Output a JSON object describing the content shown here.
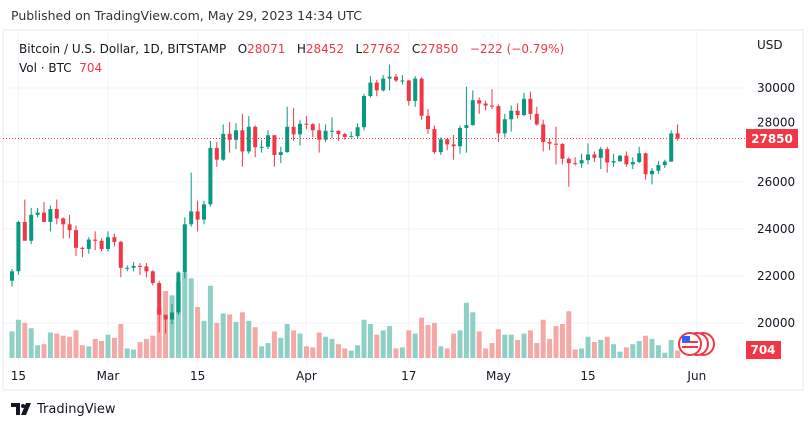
{
  "published": "Published on TradingView.com, May 29, 2023 14:34 UTC",
  "legend": {
    "symbol": "Bitcoin / U.S. Dollar, 1D, BITSTAMP",
    "o_label": "O",
    "o": "28071",
    "h_label": "H",
    "h": "28452",
    "l_label": "L",
    "l": "27762",
    "c_label": "C",
    "c": "27850",
    "change": "−222 (−0.79%)",
    "vol_label": "Vol · BTC",
    "vol": "704"
  },
  "logo_text": "TradingView",
  "colors": {
    "up": "#089981",
    "down": "#f23645",
    "vol_up": "#8fd0c6",
    "vol_down": "#f5a9a6",
    "grid": "#f0f3fa"
  },
  "chart_data": {
    "type": "candlestick",
    "title": "Bitcoin / U.S. Dollar, 1D, BITSTAMP",
    "currency_label": "USD",
    "start_date": "2023-02-14",
    "ylim": [
      19650,
      31300
    ],
    "y_ticks": [
      "20000",
      "22000",
      "24000",
      "26000",
      "28000",
      "30000"
    ],
    "x_ticks": [
      {
        "label": "15",
        "day": 1
      },
      {
        "label": "Mar",
        "day": 15
      },
      {
        "label": "15",
        "day": 29
      },
      {
        "label": "Apr",
        "day": 46
      },
      {
        "label": "17",
        "day": 62
      },
      {
        "label": "May",
        "day": 76
      },
      {
        "label": "15",
        "day": 90
      },
      {
        "label": "Jun",
        "day": 107
      }
    ],
    "last_price": "27850",
    "last_volume": "704",
    "ohlc": [
      [
        21800,
        22300,
        21550,
        22200
      ],
      [
        22200,
        24350,
        22050,
        24300
      ],
      [
        24300,
        25250,
        23500,
        23500
      ],
      [
        23500,
        24900,
        23350,
        24600
      ],
      [
        24600,
        24900,
        24500,
        24700
      ],
      [
        24700,
        25150,
        24300,
        24300
      ],
      [
        24300,
        25000,
        23900,
        24850
      ],
      [
        24850,
        25250,
        24200,
        24450
      ],
      [
        24450,
        24500,
        23600,
        24200
      ],
      [
        24200,
        24600,
        23600,
        23950
      ],
      [
        23950,
        24150,
        22850,
        23200
      ],
      [
        23200,
        23250,
        22800,
        23150
      ],
      [
        23150,
        23650,
        22950,
        23550
      ],
      [
        23550,
        23900,
        23100,
        23500
      ],
      [
        23500,
        23600,
        23050,
        23150
      ],
      [
        23150,
        23900,
        23050,
        23650
      ],
      [
        23650,
        23800,
        23250,
        23450
      ],
      [
        23450,
        23500,
        21950,
        22350
      ],
      [
        22350,
        22450,
        22200,
        22350
      ],
      [
        22350,
        22600,
        22200,
        22430
      ],
      [
        22430,
        22550,
        22050,
        22410
      ],
      [
        22410,
        22550,
        21950,
        22200
      ],
      [
        22200,
        22250,
        21600,
        21700
      ],
      [
        21700,
        21800,
        19600,
        20350
      ],
      [
        20350,
        20350,
        19550,
        20150
      ],
      [
        20150,
        20800,
        19950,
        20450
      ],
      [
        20450,
        22200,
        20350,
        22150
      ],
      [
        22150,
        24500,
        21900,
        24200
      ],
      [
        24200,
        26400,
        24100,
        24750
      ],
      [
        24750,
        25200,
        23900,
        24400
      ],
      [
        24400,
        25200,
        24200,
        25050
      ],
      [
        25050,
        27750,
        24950,
        27450
      ],
      [
        27450,
        27700,
        26650,
        26950
      ],
      [
        26950,
        28450,
        26900,
        28050
      ],
      [
        28050,
        28550,
        27250,
        27800
      ],
      [
        27800,
        28500,
        27400,
        28200
      ],
      [
        28200,
        28900,
        26650,
        27300
      ],
      [
        27300,
        28800,
        27200,
        28350
      ],
      [
        28350,
        28400,
        27050,
        27480
      ],
      [
        27480,
        27800,
        27250,
        27500
      ],
      [
        27500,
        28200,
        27400,
        27990
      ],
      [
        27990,
        28000,
        26650,
        27150
      ],
      [
        27150,
        27500,
        26800,
        27270
      ],
      [
        27270,
        29200,
        27250,
        28350
      ],
      [
        28350,
        29150,
        27750,
        28030
      ],
      [
        28030,
        28650,
        27550,
        28480
      ],
      [
        28480,
        28800,
        28250,
        28460
      ],
      [
        28460,
        28500,
        27900,
        28200
      ],
      [
        28200,
        28500,
        27250,
        27800
      ],
      [
        27800,
        28450,
        27700,
        28180
      ],
      [
        28180,
        28750,
        27850,
        28180
      ],
      [
        28180,
        28200,
        27750,
        28040
      ],
      [
        28040,
        28100,
        27800,
        27920
      ],
      [
        27920,
        28150,
        27900,
        27950
      ],
      [
        27950,
        28500,
        27850,
        28330
      ],
      [
        28330,
        29750,
        28200,
        29660
      ],
      [
        29660,
        30500,
        29600,
        30230
      ],
      [
        30230,
        30350,
        29650,
        29900
      ],
      [
        29900,
        30550,
        29850,
        30400
      ],
      [
        30400,
        31000,
        29900,
        30480
      ],
      [
        30480,
        30600,
        30250,
        30320
      ],
      [
        30320,
        30550,
        30150,
        30320
      ],
      [
        30320,
        30350,
        29250,
        29450
      ],
      [
        29450,
        30500,
        29200,
        30400
      ],
      [
        30400,
        30450,
        28650,
        28820
      ],
      [
        28820,
        29100,
        28050,
        28250
      ],
      [
        28250,
        28400,
        27200,
        27270
      ],
      [
        27270,
        27900,
        27150,
        27820
      ],
      [
        27820,
        27850,
        27350,
        27600
      ],
      [
        27600,
        28000,
        26950,
        27520
      ],
      [
        27520,
        28400,
        27200,
        28300
      ],
      [
        28300,
        30050,
        27250,
        28420
      ],
      [
        28420,
        29900,
        28400,
        29480
      ],
      [
        29480,
        29600,
        28900,
        29340
      ],
      [
        29340,
        29450,
        29050,
        29250
      ],
      [
        29250,
        29950,
        29100,
        29230
      ],
      [
        29230,
        29300,
        27700,
        28070
      ],
      [
        28070,
        28900,
        27900,
        28670
      ],
      [
        28670,
        29250,
        28150,
        29030
      ],
      [
        29030,
        29350,
        28700,
        28850
      ],
      [
        28850,
        29800,
        28800,
        29540
      ],
      [
        29540,
        29850,
        28650,
        28900
      ],
      [
        28900,
        29200,
        28400,
        28450
      ],
      [
        28450,
        28650,
        27300,
        27700
      ],
      [
        27700,
        27850,
        27350,
        27630
      ],
      [
        27630,
        28350,
        26750,
        27620
      ],
      [
        27620,
        27650,
        26750,
        26990
      ],
      [
        26990,
        27050,
        25800,
        26800
      ],
      [
        26800,
        27050,
        26700,
        26790
      ],
      [
        26790,
        27200,
        26600,
        26930
      ],
      [
        26930,
        27650,
        26750,
        27170
      ],
      [
        27170,
        27300,
        26850,
        27030
      ],
      [
        27030,
        27500,
        26550,
        27400
      ],
      [
        27400,
        27500,
        26400,
        26830
      ],
      [
        26830,
        27200,
        26650,
        26890
      ],
      [
        26890,
        27150,
        26850,
        27120
      ],
      [
        27120,
        27300,
        26650,
        26750
      ],
      [
        26750,
        27050,
        26550,
        26850
      ],
      [
        26850,
        27500,
        26800,
        27220
      ],
      [
        27220,
        27250,
        26100,
        26330
      ],
      [
        26330,
        26600,
        25900,
        26480
      ],
      [
        26480,
        26900,
        26350,
        26720
      ],
      [
        26720,
        26950,
        26600,
        26870
      ],
      [
        26870,
        28200,
        26850,
        28071
      ],
      [
        28071,
        28452,
        27762,
        27850
      ]
    ],
    "volume": [
      2500,
      3600,
      3300,
      2800,
      1200,
      1300,
      2400,
      2300,
      2100,
      2000,
      2600,
      1200,
      1100,
      1800,
      1600,
      2200,
      1900,
      3200,
      900,
      800,
      1500,
      1800,
      2100,
      4700,
      6300,
      5900,
      7200,
      8000,
      7500,
      4800,
      3500,
      6800,
      3300,
      4200,
      4100,
      3400,
      4300,
      3500,
      2900,
      1100,
      1400,
      2500,
      1900,
      3200,
      2600,
      2300,
      1100,
      1000,
      2400,
      2000,
      1800,
      1300,
      900,
      700,
      1200,
      3600,
      3200,
      2200,
      2600,
      3000,
      900,
      1000,
      2600,
      2300,
      3800,
      3100,
      3300,
      1100,
      900,
      2300,
      2600,
      5200,
      4300,
      2500,
      900,
      1400,
      2700,
      2200,
      2200,
      1700,
      2300,
      2600,
      1400,
      3600,
      1800,
      3000,
      3200,
      4400,
      800,
      900,
      2000,
      1500,
      1700,
      2000,
      1300,
      600,
      1000,
      1300,
      1600,
      2100,
      1800,
      1200,
      500,
      1700,
      704
    ]
  }
}
